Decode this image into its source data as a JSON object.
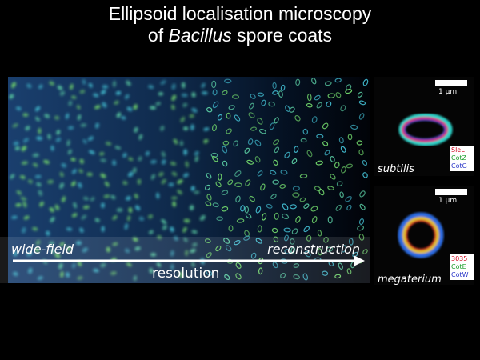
{
  "title": {
    "line1": "Ellipsoid localisation microscopy",
    "line2_prefix": "of ",
    "line2_genus": "Bacillus",
    "line2_suffix": " spore coats"
  },
  "field": {
    "left_label": "wide-field",
    "right_label": "reconstruction",
    "arrow_label": "resolution"
  },
  "insets": {
    "subtilis": {
      "scale_label": "1 µm",
      "species": "subtilis",
      "legend": [
        "SleL",
        "CotZ",
        "CotG"
      ]
    },
    "megaterium": {
      "scale_label": "1 µm",
      "species": "megaterium",
      "legend": [
        "3035",
        "CotE",
        "CotW"
      ]
    }
  },
  "colors": {
    "legend_red": "#d0021b",
    "legend_green": "#1a9e2a",
    "legend_blue": "#2a36c8"
  }
}
